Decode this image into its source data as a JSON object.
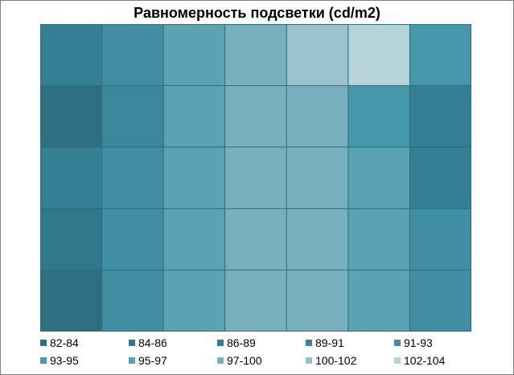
{
  "chart_data": {
    "type": "heatmap",
    "title": "Равномерность подсветки (cd/m2)",
    "legend": {
      "position": "bottom",
      "entries": [
        "82-84",
        "84-86",
        "86-89",
        "89-91",
        "91-93",
        "93-95",
        "95-97",
        "97-100",
        "100-102",
        "102-104"
      ],
      "colors": [
        "#2e6f7f",
        "#31788a",
        "#357f92",
        "#3a8799",
        "#3f8ea2",
        "#4698ab",
        "#5aa3b3",
        "#78b0bd",
        "#99c2cc",
        "#b6d3da"
      ]
    },
    "grid": true,
    "rows": 5,
    "cols": 7,
    "values": [
      [
        86,
        91,
        95,
        98,
        101,
        103,
        94
      ],
      [
        82,
        90,
        95,
        97,
        98,
        94,
        86
      ],
      [
        86,
        91,
        96,
        98,
        97,
        95,
        88
      ],
      [
        84,
        91,
        96,
        97,
        97,
        95,
        91
      ],
      [
        83,
        91,
        96,
        97,
        97,
        95,
        92
      ]
    ]
  }
}
